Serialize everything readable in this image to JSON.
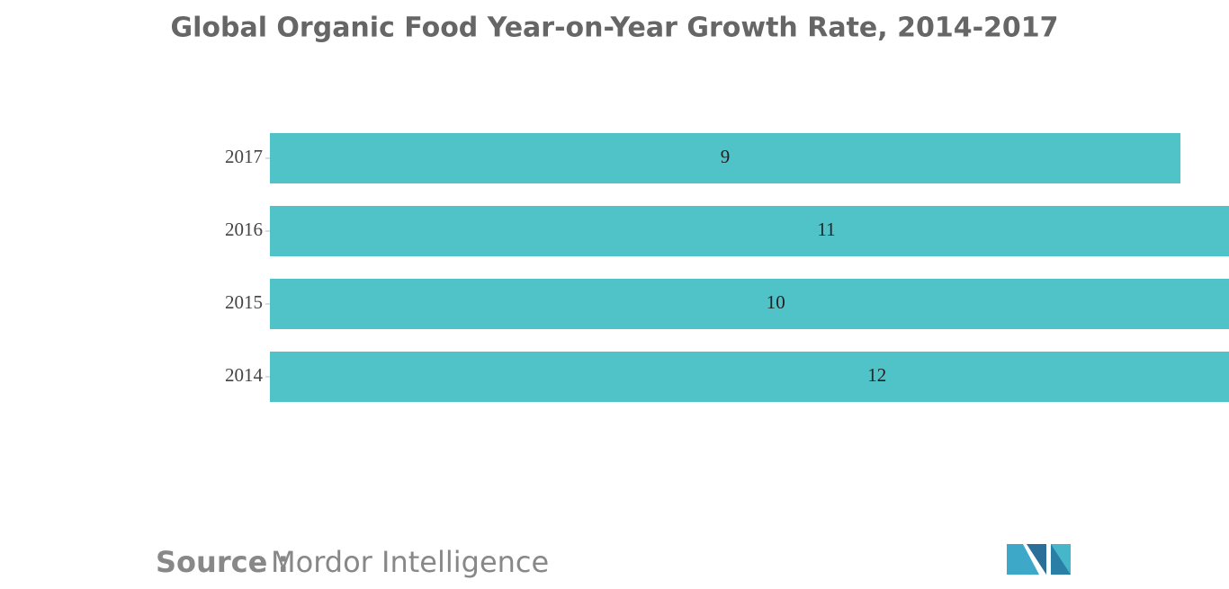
{
  "chart_data": {
    "type": "hbar",
    "title": "Global Organic Food Year-on-Year Growth Rate, 2014-2017",
    "categories": [
      "2017",
      "2016",
      "2015",
      "2014"
    ],
    "values": [
      9,
      11,
      10,
      12
    ],
    "color": "#4fc3c8"
  },
  "footer": {
    "source_label": "Source :",
    "source": "Mordor Intelligence"
  }
}
